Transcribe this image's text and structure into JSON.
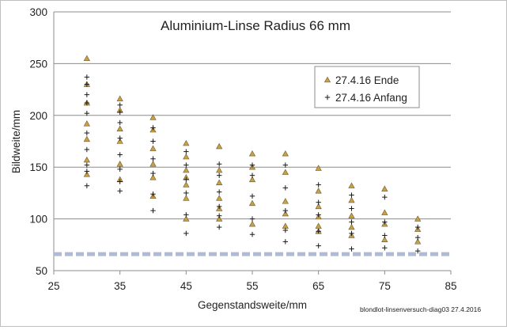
{
  "chart_data": {
    "type": "scatter",
    "title": "Aluminium-Linse Radius 66 mm",
    "xlabel": "Gegenstandsweite/mm",
    "ylabel": "Bildweite/mm",
    "xlim": [
      25,
      85
    ],
    "ylim": [
      50,
      300
    ],
    "xticks": [
      25,
      35,
      45,
      55,
      65,
      75,
      85
    ],
    "yticks": [
      50,
      100,
      150,
      200,
      250,
      300
    ],
    "grid": "horizontal",
    "legend_position": "top-right",
    "footnote": "blondlot-linsenversuch-diag03 27.4.2016",
    "asymptote": {
      "y": 66,
      "style": "dashed",
      "color": "#aebbd6"
    },
    "series": [
      {
        "name": "27.4.16 Ende",
        "marker": "triangle",
        "color": "#c8a048",
        "points": [
          [
            30,
            255
          ],
          [
            30,
            230
          ],
          [
            30,
            212
          ],
          [
            30,
            192
          ],
          [
            30,
            177
          ],
          [
            30,
            157
          ],
          [
            30,
            143
          ],
          [
            35,
            216
          ],
          [
            35,
            205
          ],
          [
            35,
            187
          ],
          [
            35,
            175
          ],
          [
            35,
            153
          ],
          [
            35,
            138
          ],
          [
            40,
            198
          ],
          [
            40,
            186
          ],
          [
            40,
            168
          ],
          [
            40,
            153
          ],
          [
            40,
            140
          ],
          [
            40,
            122
          ],
          [
            45,
            173
          ],
          [
            45,
            160
          ],
          [
            45,
            147
          ],
          [
            45,
            140
          ],
          [
            45,
            133
          ],
          [
            45,
            120
          ],
          [
            45,
            100
          ],
          [
            50,
            170
          ],
          [
            50,
            147
          ],
          [
            50,
            135
          ],
          [
            50,
            120
          ],
          [
            50,
            110
          ],
          [
            50,
            100
          ],
          [
            55,
            163
          ],
          [
            55,
            150
          ],
          [
            55,
            138
          ],
          [
            55,
            115
          ],
          [
            55,
            95
          ],
          [
            60,
            163
          ],
          [
            60,
            145
          ],
          [
            60,
            117
          ],
          [
            60,
            105
          ],
          [
            60,
            93
          ],
          [
            65,
            149
          ],
          [
            65,
            127
          ],
          [
            65,
            112
          ],
          [
            65,
            102
          ],
          [
            65,
            93
          ],
          [
            65,
            88
          ],
          [
            70,
            132
          ],
          [
            70,
            118
          ],
          [
            70,
            103
          ],
          [
            70,
            92
          ],
          [
            70,
            84
          ],
          [
            75,
            129
          ],
          [
            75,
            106
          ],
          [
            75,
            95
          ],
          [
            75,
            80
          ],
          [
            80,
            100
          ],
          [
            80,
            90
          ],
          [
            80,
            78
          ]
        ]
      },
      {
        "name": "27.4.16 Anfang",
        "marker": "plus",
        "color": "#1a1a1a",
        "points": [
          [
            30,
            237
          ],
          [
            30,
            230
          ],
          [
            30,
            220
          ],
          [
            30,
            212
          ],
          [
            30,
            202
          ],
          [
            30,
            183
          ],
          [
            30,
            167
          ],
          [
            30,
            152
          ],
          [
            30,
            146
          ],
          [
            30,
            132
          ],
          [
            35,
            210
          ],
          [
            35,
            203
          ],
          [
            35,
            193
          ],
          [
            35,
            178
          ],
          [
            35,
            162
          ],
          [
            35,
            148
          ],
          [
            35,
            136
          ],
          [
            35,
            127
          ],
          [
            40,
            188
          ],
          [
            40,
            175
          ],
          [
            40,
            158
          ],
          [
            40,
            144
          ],
          [
            40,
            124
          ],
          [
            40,
            108
          ],
          [
            45,
            165
          ],
          [
            45,
            152
          ],
          [
            45,
            138
          ],
          [
            45,
            125
          ],
          [
            45,
            104
          ],
          [
            45,
            86
          ],
          [
            50,
            153
          ],
          [
            50,
            142
          ],
          [
            50,
            126
          ],
          [
            50,
            112
          ],
          [
            50,
            103
          ],
          [
            50,
            92
          ],
          [
            55,
            152
          ],
          [
            55,
            142
          ],
          [
            55,
            122
          ],
          [
            55,
            100
          ],
          [
            55,
            85
          ],
          [
            60,
            152
          ],
          [
            60,
            130
          ],
          [
            60,
            108
          ],
          [
            60,
            89
          ],
          [
            60,
            78
          ],
          [
            65,
            133
          ],
          [
            65,
            116
          ],
          [
            65,
            104
          ],
          [
            65,
            88
          ],
          [
            65,
            74
          ],
          [
            70,
            123
          ],
          [
            70,
            110
          ],
          [
            70,
            97
          ],
          [
            70,
            86
          ],
          [
            70,
            71
          ],
          [
            75,
            121
          ],
          [
            75,
            97
          ],
          [
            75,
            84
          ],
          [
            75,
            72
          ],
          [
            80,
            92
          ],
          [
            80,
            82
          ],
          [
            80,
            69
          ]
        ]
      }
    ]
  }
}
